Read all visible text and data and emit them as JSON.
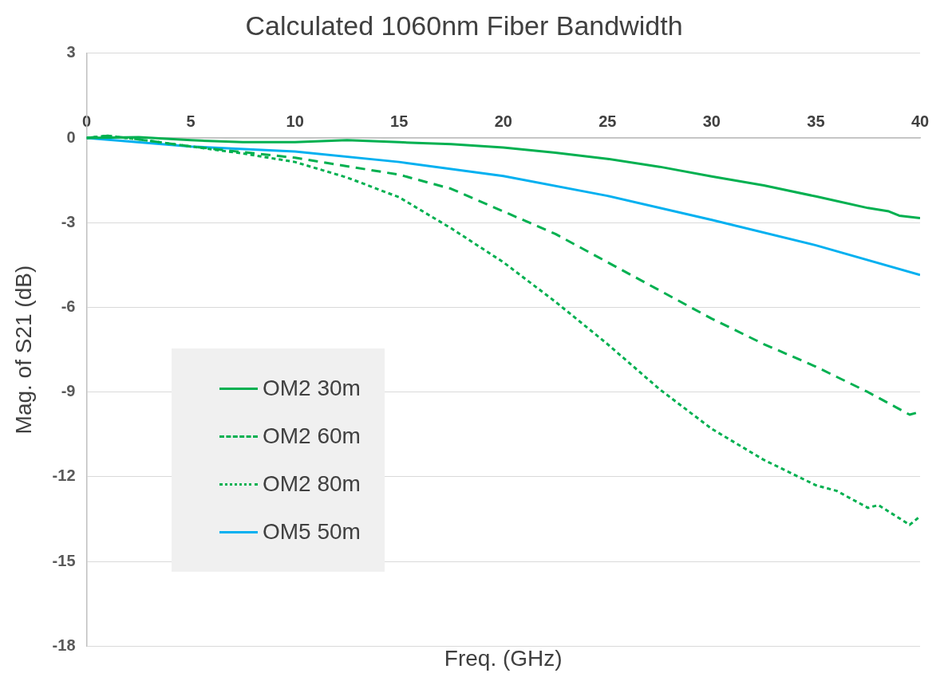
{
  "chart_data": {
    "type": "line",
    "title": "Calculated 1060nm Fiber Bandwidth",
    "xlabel": "Freq. (GHz)",
    "ylabel": "Mag. of S21 (dB)",
    "xlim": [
      0,
      40
    ],
    "xticks": [
      0,
      5,
      10,
      15,
      20,
      25,
      30,
      35,
      40
    ],
    "ylim": [
      -18,
      3
    ],
    "yticks": [
      -18,
      -15,
      -12,
      -9,
      -6,
      -3,
      0,
      3
    ],
    "grid": "y",
    "legend": "bottom left",
    "marker": "none",
    "series": [
      {
        "name": "OM2 30m",
        "color": "#00b050",
        "line_style": "solid",
        "x": [
          0,
          2.5,
          5,
          7.5,
          10,
          12.5,
          15,
          17.5,
          20,
          22.5,
          25,
          27.5,
          30,
          32.5,
          35,
          37.5,
          38.5,
          39,
          40
        ],
        "values": [
          0,
          0.03,
          -0.08,
          -0.15,
          -0.15,
          -0.08,
          -0.15,
          -0.22,
          -0.34,
          -0.52,
          -0.74,
          -1.02,
          -1.36,
          -1.68,
          -2.07,
          -2.48,
          -2.6,
          -2.75,
          -2.84
        ]
      },
      {
        "name": "OM2 60m",
        "color": "#00b050",
        "line_style": "dashed",
        "x": [
          0,
          1,
          2.5,
          5,
          7.5,
          10,
          12.5,
          15,
          17.5,
          20,
          22.5,
          25,
          27.5,
          30,
          32.5,
          35,
          37.5,
          39.5,
          40
        ],
        "values": [
          0,
          0.08,
          -0.05,
          -0.3,
          -0.5,
          -0.7,
          -1.0,
          -1.3,
          -1.8,
          -2.6,
          -3.4,
          -4.4,
          -5.4,
          -6.4,
          -7.3,
          -8.1,
          -9.0,
          -9.8,
          -9.7
        ]
      },
      {
        "name": "OM2 80m",
        "color": "#00b050",
        "line_style": "dotted",
        "x": [
          0,
          1,
          2.5,
          5,
          7.5,
          10,
          12.5,
          15,
          17.5,
          20,
          22.5,
          25,
          27.5,
          30,
          32.5,
          35,
          36,
          37.5,
          38,
          39.5,
          40
        ],
        "values": [
          0,
          0.08,
          -0.05,
          -0.3,
          -0.55,
          -0.85,
          -1.4,
          -2.1,
          -3.2,
          -4.4,
          -5.8,
          -7.3,
          -8.9,
          -10.3,
          -11.4,
          -12.3,
          -12.5,
          -13.1,
          -13.0,
          -13.7,
          -13.4
        ]
      },
      {
        "name": "OM5 50m",
        "color": "#00b0f0",
        "line_style": "solid",
        "x": [
          0,
          5,
          10,
          15,
          20,
          25,
          30,
          35,
          40
        ],
        "values": [
          0,
          -0.3,
          -0.48,
          -0.85,
          -1.35,
          -2.05,
          -2.9,
          -3.8,
          -4.85
        ]
      }
    ]
  }
}
